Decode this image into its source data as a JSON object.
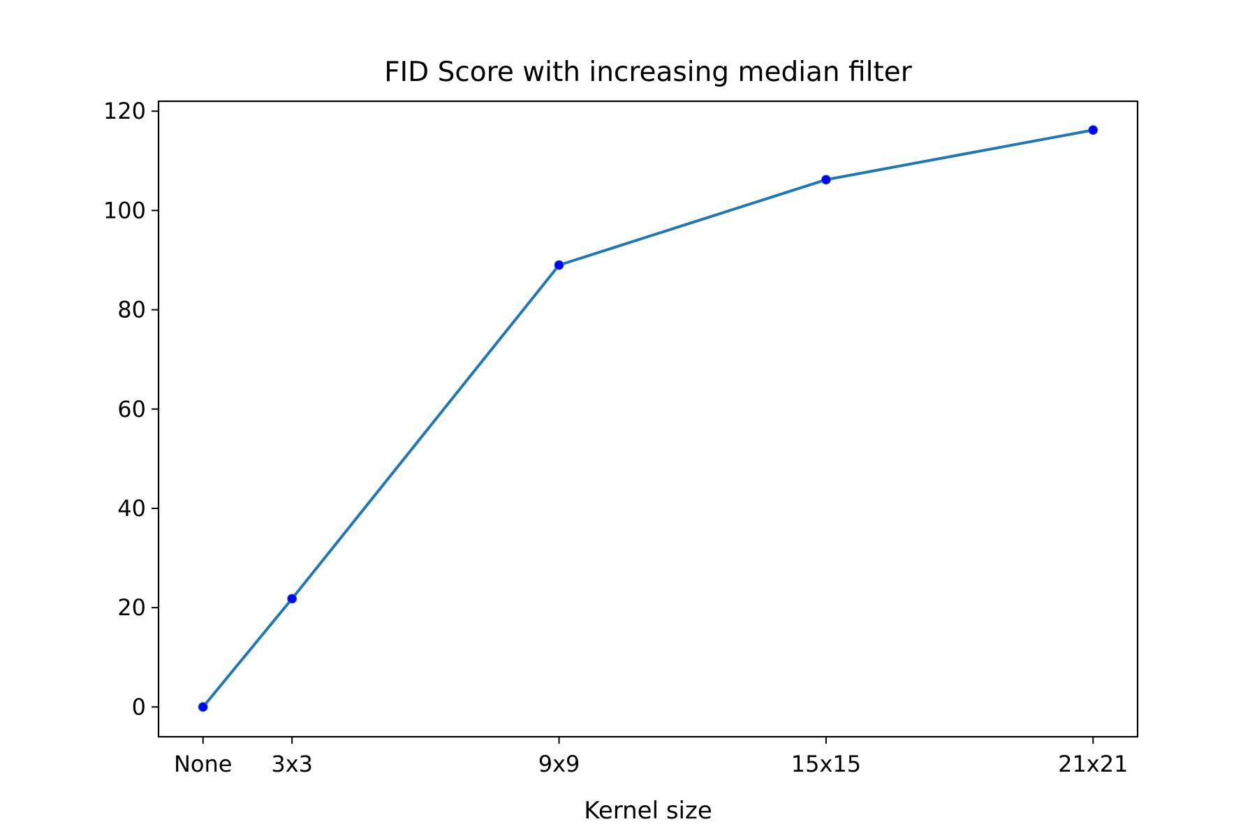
{
  "chart_data": {
    "type": "line",
    "title": "FID Score with increasing median filter",
    "xlabel": "Kernel size",
    "ylabel": "",
    "x_positions": [
      1,
      3,
      9,
      15,
      21
    ],
    "x_tick_labels": [
      "None",
      "3x3",
      "9x9",
      "15x15",
      "21x21"
    ],
    "xlim": [
      0,
      22
    ],
    "ylim": [
      -6,
      122
    ],
    "y_ticks": [
      0,
      20,
      40,
      60,
      80,
      100,
      120
    ],
    "series": [
      {
        "values": [
          0,
          21.8,
          89,
          106.2,
          116.2
        ],
        "line_color": "#1f77b4",
        "marker_color": "#0000ff"
      }
    ],
    "grid": false,
    "legend": false
  }
}
